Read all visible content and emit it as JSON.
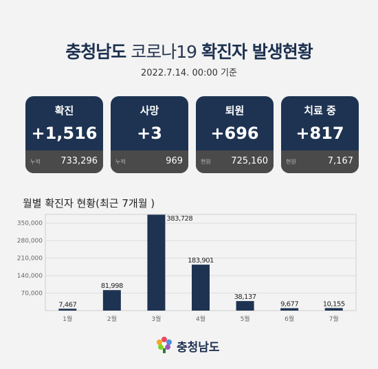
{
  "header": {
    "brand": "충청남도",
    "title_mid": " 코로나19 ",
    "title_end": "확진자 발생현황",
    "date": "2022.7.14. 00:00 기준"
  },
  "cards": [
    {
      "label": "확진",
      "value": "+1,516",
      "sub_label": "누적",
      "sub_value": "733,296"
    },
    {
      "label": "사망",
      "value": "+3",
      "sub_label": "누적",
      "sub_value": "969"
    },
    {
      "label": "퇴원",
      "value": "+696",
      "sub_label": "현원",
      "sub_value": "725,160"
    },
    {
      "label": "치료 중",
      "value": "+817",
      "sub_label": "현원",
      "sub_value": "7,167"
    }
  ],
  "chart_title": "월별 확진자 현황(최근 7개월 )",
  "chart_data": {
    "type": "bar",
    "categories": [
      "1월",
      "2월",
      "3월",
      "4월",
      "5월",
      "6월",
      "7월"
    ],
    "values": [
      7467,
      81998,
      383728,
      183901,
      38137,
      9677,
      10155
    ],
    "value_labels": [
      "7,467",
      "81,998",
      "383,728",
      "183,901",
      "38,137",
      "9,677",
      "10,155"
    ],
    "yticks": [
      "70,000",
      "140,000",
      "210,000",
      "280,000",
      "350,000"
    ],
    "ytick_values": [
      70000,
      140000,
      210000,
      280000,
      350000
    ],
    "ylim": [
      0,
      385000
    ],
    "grid": true,
    "bar_color": "#1e3352"
  },
  "logo_text": "충청남도",
  "icons": [
    "logo-flower-icon"
  ]
}
